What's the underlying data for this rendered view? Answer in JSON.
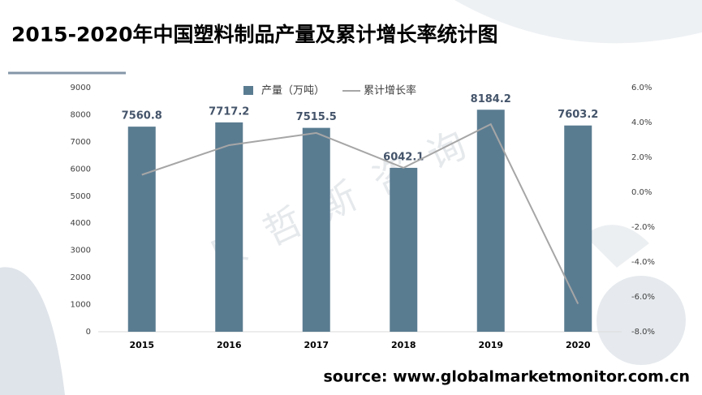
{
  "chart_data": {
    "type": "bar_line",
    "title": "2015-2020年中国塑料制品产量及累计增长率统计图",
    "source": "source: www.globalmarketmonitor.com.cn",
    "watermark": "贝哲斯咨询",
    "categories": [
      "2015",
      "2016",
      "2017",
      "2018",
      "2019",
      "2020"
    ],
    "series": [
      {
        "name": "产量（万吨）",
        "type": "bar",
        "color": "#5a7c91",
        "values": [
          7560.8,
          7717.2,
          7515.5,
          6042.1,
          8184.2,
          7603.2
        ]
      },
      {
        "name": "累计增长率",
        "type": "line",
        "axis": "y2",
        "color": "#a6a6a6",
        "values": [
          1.0,
          2.7,
          3.4,
          1.4,
          3.9,
          -6.4
        ]
      }
    ],
    "ylim": [
      0,
      9000
    ],
    "yticks": [
      0,
      1000,
      2000,
      3000,
      4000,
      5000,
      6000,
      7000,
      8000,
      9000
    ],
    "y2lim": [
      -8,
      6
    ],
    "y2ticks": [
      {
        "value": -8,
        "label": "-8.0%"
      },
      {
        "value": -6,
        "label": "-6.0%"
      },
      {
        "value": -4,
        "label": "-4.0%"
      },
      {
        "value": -2,
        "label": "-2.0%"
      },
      {
        "value": 0,
        "label": "0.0%"
      },
      {
        "value": 2,
        "label": "2.0%"
      },
      {
        "value": 4,
        "label": "4.0%"
      },
      {
        "value": 6,
        "label": "6.0%"
      }
    ],
    "legend": "top"
  }
}
